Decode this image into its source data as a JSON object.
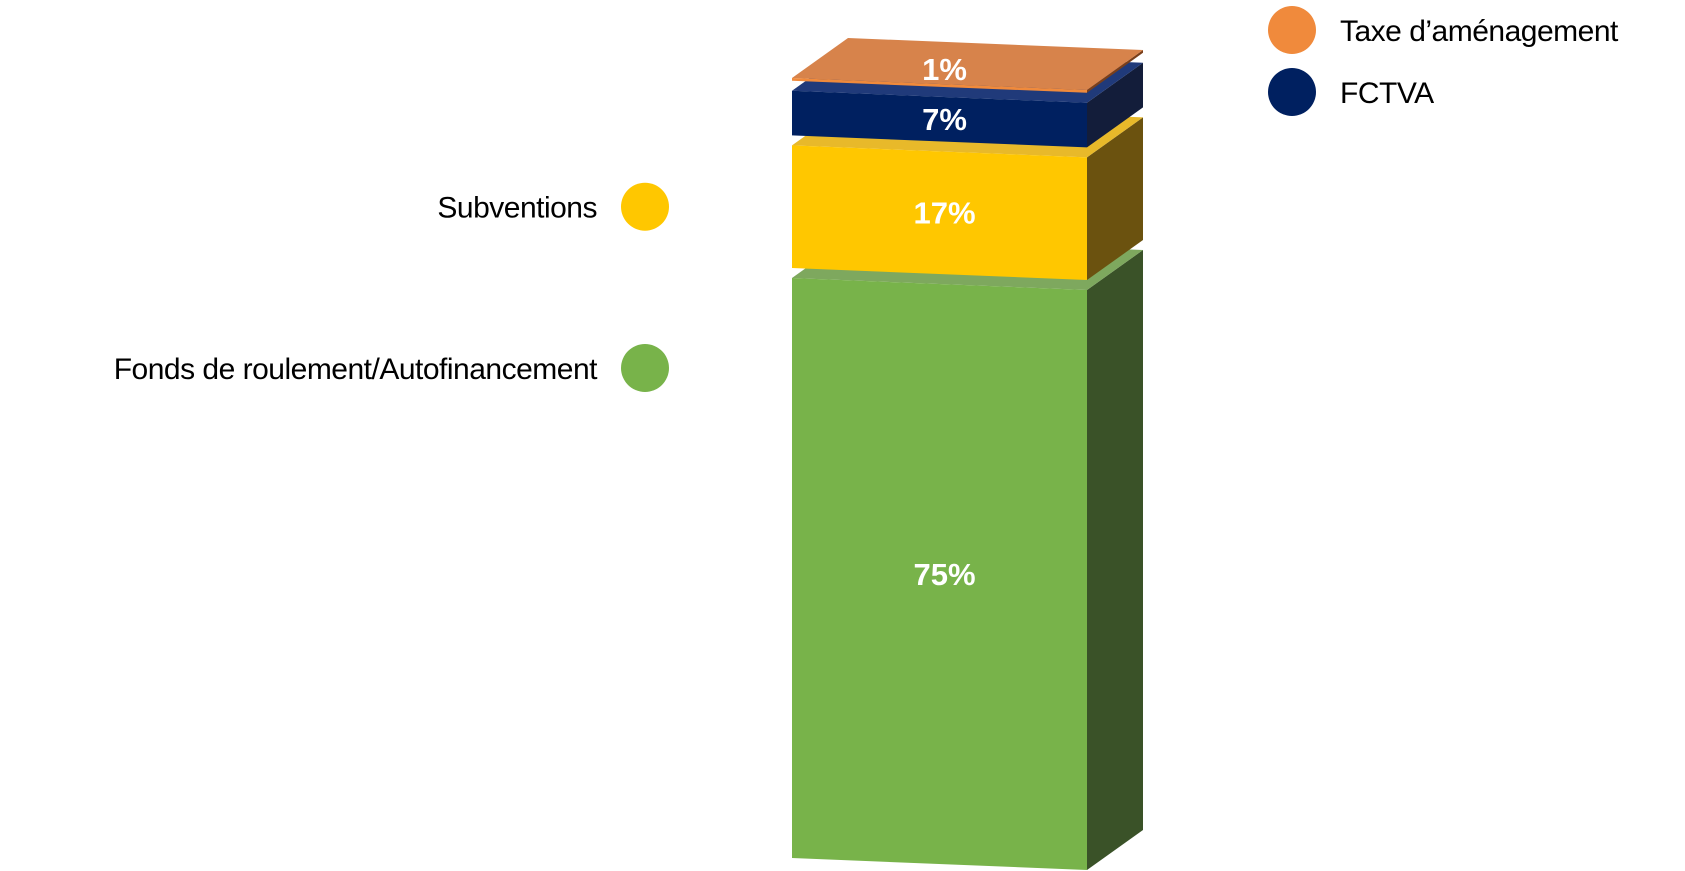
{
  "chart_data": {
    "type": "bar",
    "stacked": true,
    "three_d": true,
    "title": "",
    "xlabel": "",
    "ylabel": "",
    "ylim": [
      0,
      100
    ],
    "categories": [
      ""
    ],
    "series": [
      {
        "name": "Fonds de roulement/Autofinancement",
        "values": [
          75
        ],
        "value_label": "75%",
        "color": "#78b34a",
        "side_color": "#3a5228",
        "top_color": "#7ea85e",
        "legend_side": "left"
      },
      {
        "name": "Subventions",
        "values": [
          17
        ],
        "value_label": "17%",
        "color": "#ffc700",
        "side_color": "#6b520f",
        "top_color": "#e8b92a",
        "legend_side": "left"
      },
      {
        "name": "FCTVA",
        "values": [
          7
        ],
        "value_label": "7%",
        "color": "#002060",
        "side_color": "#131d3a",
        "top_color": "#203a7a",
        "legend_side": "right"
      },
      {
        "name": "Taxe d’aménagement",
        "values": [
          1
        ],
        "value_label": "1%",
        "color": "#f08a3c",
        "side_color": "#7a3f1a",
        "top_color": "#d7834b",
        "legend_side": "right"
      }
    ],
    "legend_placement": "beside-segments",
    "grid": false
  }
}
